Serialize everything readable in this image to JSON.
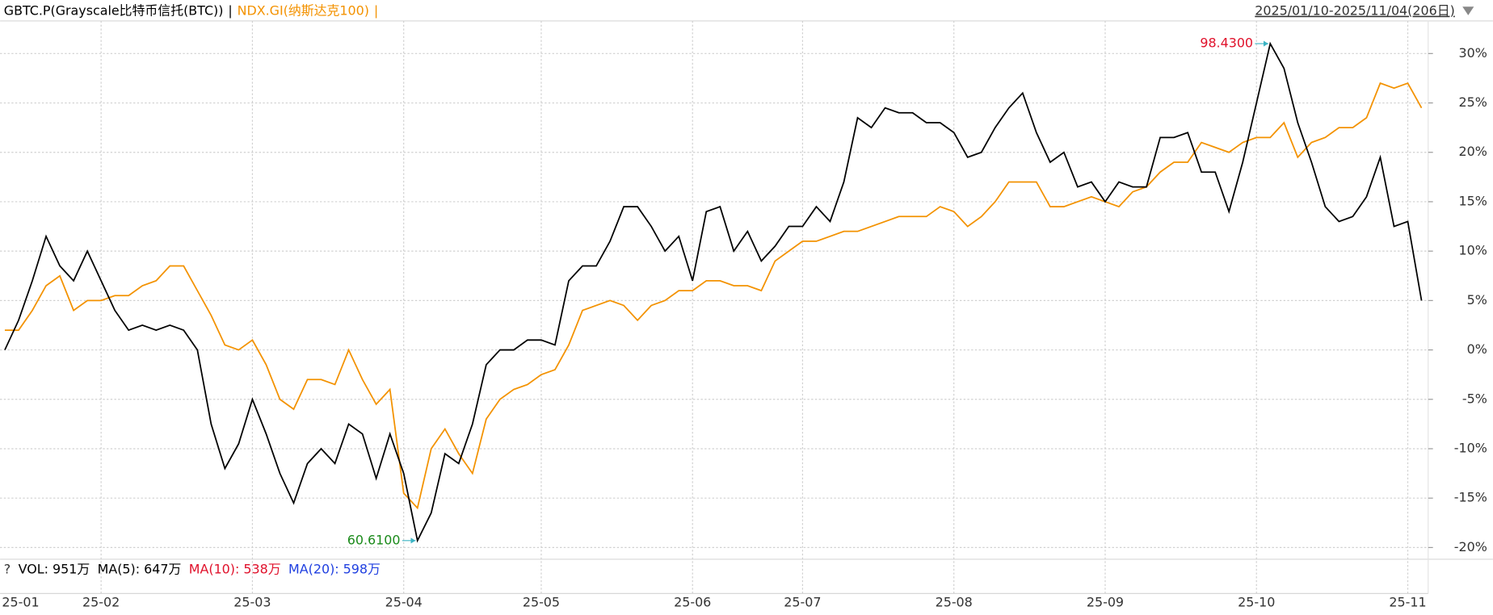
{
  "chart_data": {
    "type": "line",
    "header_range": "2025/01/10-2025/11/04(206日)",
    "separator": "|",
    "vol_legend": [
      {
        "text": "?",
        "color": "#333333"
      },
      {
        "text": "VOL: 951万",
        "color": "#000000"
      },
      {
        "text": "MA(5): 647万",
        "color": "#000000"
      },
      {
        "text": "MA(10): 538万",
        "color": "#e0112b"
      },
      {
        "text": "MA(20): 598万",
        "color": "#1f3fe0"
      }
    ],
    "max_label": "98.4300",
    "max_label_color": "#e0112b",
    "min_label": "60.6100",
    "min_label_color": "#1a8a1a",
    "categories": [
      "25-01",
      null,
      null,
      null,
      null,
      null,
      null,
      "25-02",
      null,
      null,
      null,
      null,
      null,
      null,
      null,
      null,
      null,
      null,
      "25-03",
      null,
      null,
      null,
      null,
      null,
      null,
      null,
      null,
      null,
      null,
      "25-04",
      null,
      null,
      null,
      null,
      null,
      null,
      null,
      null,
      null,
      "25-05",
      null,
      null,
      null,
      null,
      null,
      null,
      null,
      null,
      null,
      null,
      "25-06",
      null,
      null,
      null,
      null,
      null,
      null,
      null,
      "25-07",
      null,
      null,
      null,
      null,
      null,
      null,
      null,
      null,
      null,
      null,
      "25-08",
      null,
      null,
      null,
      null,
      null,
      null,
      null,
      null,
      null,
      null,
      "25-09",
      null,
      null,
      null,
      null,
      null,
      null,
      null,
      null,
      null,
      null,
      "25-10",
      null,
      null,
      null,
      null,
      null,
      null,
      null,
      null,
      null,
      null,
      "25-11",
      null
    ],
    "series": [
      {
        "name": "GBTC.P(Grayscale比特币信托(BTC))",
        "color": "#000000",
        "values": [
          0,
          3,
          7,
          11.5,
          8.5,
          7,
          10,
          7,
          4,
          2,
          2.5,
          2,
          2.5,
          2,
          0,
          -7.5,
          -12,
          -9.5,
          -5,
          -8.5,
          -12.5,
          -15.5,
          -11.5,
          -10,
          -11.5,
          -7.5,
          -8.5,
          -13,
          -8.5,
          -12.5,
          -19.3,
          -16.5,
          -10.5,
          -11.5,
          -7.5,
          -1.5,
          0,
          0,
          1,
          1,
          0.5,
          7,
          8.5,
          8.5,
          11,
          14.5,
          14.5,
          12.5,
          10,
          11.5,
          7,
          14,
          14.5,
          10,
          12,
          9,
          10.5,
          12.5,
          12.5,
          14.5,
          13,
          17,
          23.5,
          22.5,
          24.5,
          24,
          24,
          23,
          23,
          22,
          19.5,
          20,
          22.5,
          24.5,
          26,
          22,
          19,
          20,
          16.5,
          17,
          15,
          17,
          16.5,
          16.5,
          21.5,
          21.5,
          22,
          18,
          18,
          14,
          19,
          25,
          31,
          28.5,
          23,
          19,
          14.5,
          13,
          13.5,
          15.5,
          19.5,
          12.5,
          13,
          5
        ]
      },
      {
        "name": "NDX.GI(纳斯达克100)",
        "color": "#f39200",
        "values": [
          2,
          2,
          4,
          6.5,
          7.5,
          4,
          5,
          5,
          5.5,
          5.5,
          6.5,
          7,
          8.5,
          8.5,
          6,
          3.5,
          0.5,
          0,
          1,
          -1.5,
          -5,
          -6,
          -3,
          -3,
          -3.5,
          0,
          -3,
          -5.5,
          -4,
          -14.5,
          -16,
          -10,
          -8,
          -10.5,
          -12.5,
          -7,
          -5,
          -4,
          -3.5,
          -2.5,
          -2,
          0.5,
          4,
          4.5,
          5,
          4.5,
          3,
          4.5,
          5,
          6,
          6,
          7,
          7,
          6.5,
          6.5,
          6,
          9,
          10,
          11,
          11,
          11.5,
          12,
          12,
          12.5,
          13,
          13.5,
          13.5,
          13.5,
          14.5,
          14,
          12.5,
          13.5,
          15,
          17,
          17,
          17,
          14.5,
          14.5,
          15,
          15.5,
          15,
          14.5,
          16,
          16.5,
          18,
          19,
          19,
          21,
          20.5,
          20,
          21,
          21.5,
          21.5,
          23,
          19.5,
          21,
          21.5,
          22.5,
          22.5,
          23.5,
          27,
          26.5,
          27,
          24.5
        ]
      }
    ],
    "ylim": [
      -20.9,
      33.3
    ],
    "yticks": [
      {
        "value": -20,
        "label": "-20%"
      },
      {
        "value": -15,
        "label": "-15%"
      },
      {
        "value": -10,
        "label": "-10%"
      },
      {
        "value": -5,
        "label": "-5%"
      },
      {
        "value": 0,
        "label": "0%"
      },
      {
        "value": 5,
        "label": "5%"
      },
      {
        "value": 10,
        "label": "10%"
      },
      {
        "value": 15,
        "label": "15%"
      },
      {
        "value": 20,
        "label": "20%"
      },
      {
        "value": 25,
        "label": "25%"
      },
      {
        "value": 30,
        "label": "30%"
      }
    ],
    "grid": true
  }
}
